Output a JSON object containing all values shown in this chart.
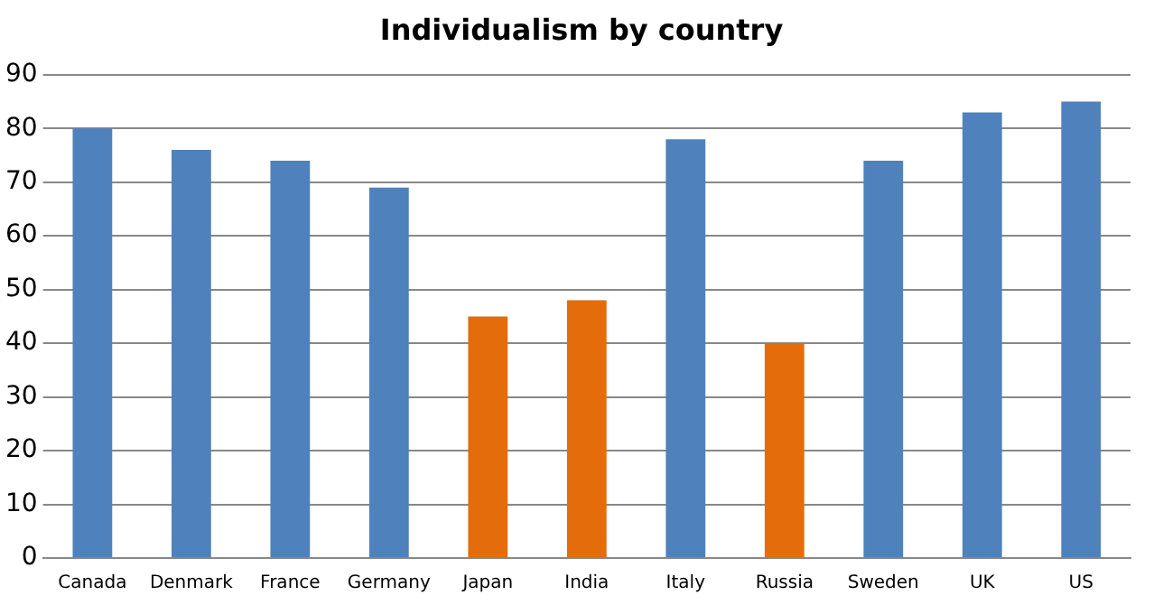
{
  "chart_data": {
    "type": "bar",
    "title": "Individualism by country",
    "categories": [
      "Canada",
      "Denmark",
      "France",
      "Germany",
      "Japan",
      "India",
      "Italy",
      "Russia",
      "Sweden",
      "UK",
      "US"
    ],
    "values": [
      80,
      76,
      74,
      69,
      45,
      48,
      78,
      40,
      74,
      83,
      85
    ],
    "colors": [
      "#4f81bd",
      "#4f81bd",
      "#4f81bd",
      "#4f81bd",
      "#e46c0a",
      "#e46c0a",
      "#4f81bd",
      "#e46c0a",
      "#4f81bd",
      "#4f81bd",
      "#4f81bd"
    ],
    "ylim": [
      0,
      90
    ],
    "yticks": [
      0,
      10,
      20,
      30,
      40,
      50,
      60,
      70,
      80,
      90
    ],
    "grid": "y"
  }
}
